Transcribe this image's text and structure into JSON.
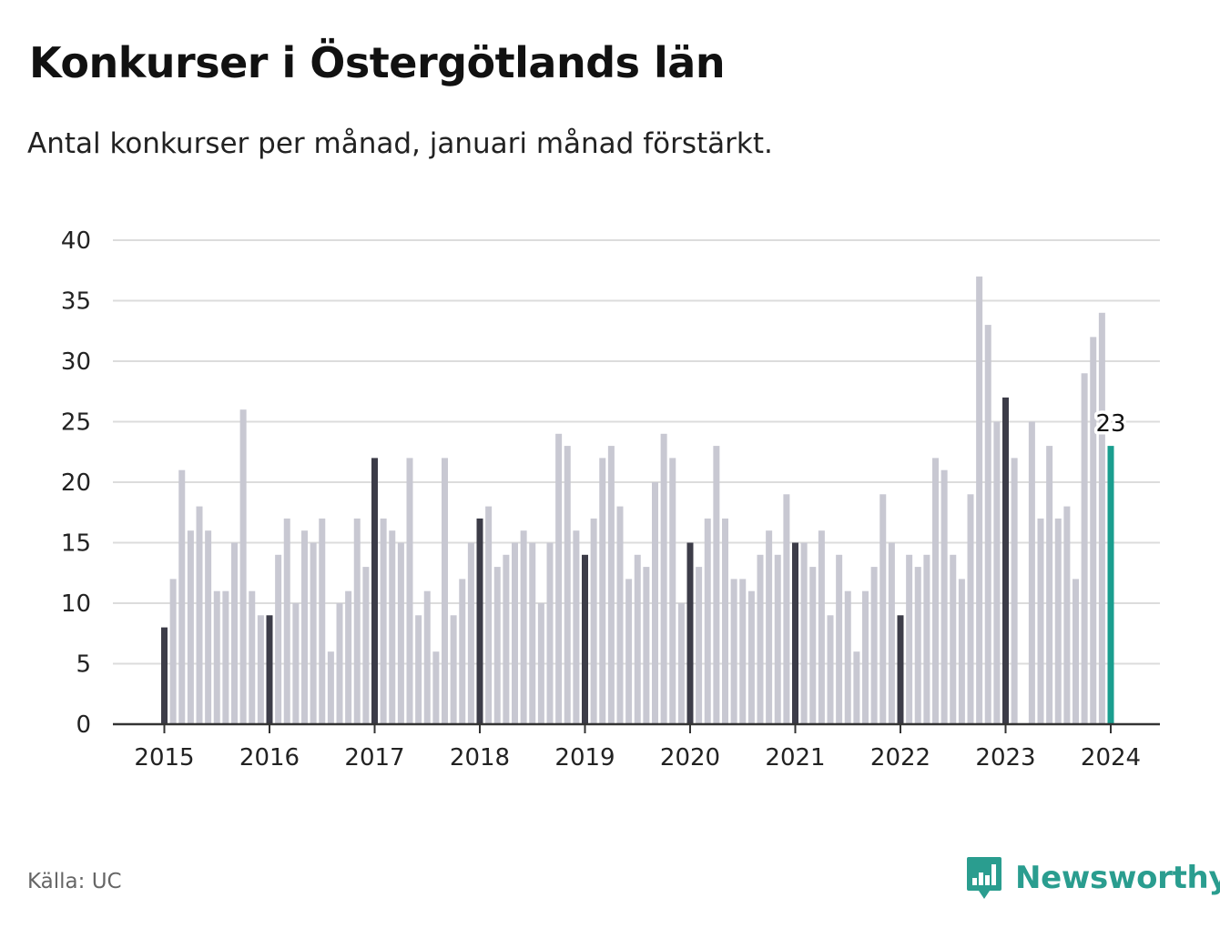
{
  "header": {
    "title": "Konkurser i Östergötlands län",
    "subtitle": "Antal konkurser per månad, januari månad förstärkt."
  },
  "footer": {
    "source": "Källa: UC",
    "brand": "Newsworthy"
  },
  "colors": {
    "month_bar": "#c8c8d2",
    "january_bar": "#3c3c48",
    "latest_bar": "#1a9e8f",
    "grid": "#dcdcdc",
    "axis": "#333333",
    "brand": "#2a9d8f"
  },
  "icons": {
    "brand_logo": "newsworthy-logo-icon"
  },
  "chart_data": {
    "type": "bar",
    "title": "Konkurser i Östergötlands län",
    "subtitle": "Antal konkurser per månad, januari månad förstärkt.",
    "ylim": [
      0,
      40
    ],
    "yticks": [
      0,
      5,
      10,
      15,
      20,
      25,
      30,
      35,
      40
    ],
    "xticks": [
      "2015",
      "2016",
      "2017",
      "2018",
      "2019",
      "2020",
      "2021",
      "2022",
      "2023",
      "2024"
    ],
    "grid": true,
    "start": "2015-01",
    "values": [
      8,
      12,
      21,
      16,
      18,
      16,
      11,
      11,
      15,
      26,
      11,
      9,
      9,
      14,
      17,
      10,
      16,
      15,
      17,
      6,
      10,
      11,
      17,
      13,
      22,
      17,
      16,
      15,
      22,
      9,
      11,
      6,
      22,
      9,
      12,
      15,
      17,
      18,
      13,
      14,
      15,
      16,
      15,
      10,
      15,
      24,
      23,
      16,
      14,
      17,
      22,
      23,
      18,
      12,
      14,
      13,
      20,
      24,
      22,
      10,
      15,
      13,
      17,
      23,
      17,
      12,
      12,
      11,
      14,
      16,
      14,
      19,
      15,
      15,
      13,
      16,
      9,
      14,
      11,
      6,
      11,
      13,
      19,
      15,
      9,
      14,
      13,
      14,
      22,
      21,
      14,
      12,
      19,
      37,
      33,
      25,
      27,
      22,
      0,
      25,
      17,
      23,
      17,
      18,
      12,
      29,
      32,
      34,
      23
    ],
    "highlight": "january",
    "annotation": {
      "label": "23",
      "target": "2024-01"
    }
  }
}
